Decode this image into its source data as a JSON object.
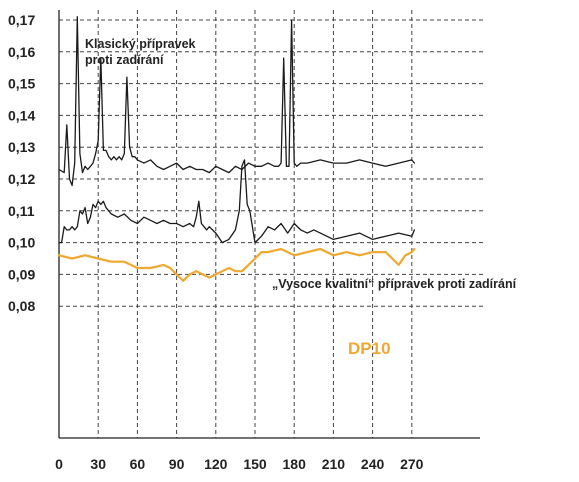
{
  "chart_data": {
    "type": "line",
    "title": "",
    "xlabel": "",
    "ylabel": "",
    "xlim": [
      0,
      275
    ],
    "ylim": [
      0.07,
      0.172
    ],
    "x_ticks": [
      "0",
      "30",
      "60",
      "90",
      "120",
      "150",
      "180",
      "210",
      "240",
      "270"
    ],
    "y_ticks": [
      "0,08",
      "0,09",
      "0,10",
      "0,11",
      "0,12",
      "0,13",
      "0,14",
      "0,15",
      "0,16",
      "0,17"
    ],
    "grid": true,
    "series": [
      {
        "name": "Klasický přípravek proti zadírání",
        "color": "#1a1a1a",
        "x": [
          0,
          4,
          6,
          8,
          10,
          12,
          14,
          16,
          18,
          20,
          22,
          24,
          26,
          28,
          30,
          32,
          34,
          36,
          38,
          40,
          42,
          44,
          46,
          48,
          50,
          52,
          54,
          56,
          58,
          60,
          65,
          70,
          75,
          80,
          85,
          90,
          95,
          100,
          105,
          110,
          115,
          120,
          125,
          130,
          135,
          140,
          145,
          150,
          155,
          160,
          165,
          168,
          170,
          172,
          174,
          176,
          178,
          180,
          182,
          185,
          190,
          200,
          210,
          220,
          230,
          240,
          250,
          260,
          270,
          272
        ],
        "y": [
          0.123,
          0.122,
          0.137,
          0.12,
          0.118,
          0.125,
          0.171,
          0.128,
          0.122,
          0.124,
          0.123,
          0.124,
          0.125,
          0.128,
          0.132,
          0.158,
          0.129,
          0.129,
          0.127,
          0.126,
          0.127,
          0.126,
          0.127,
          0.126,
          0.128,
          0.152,
          0.13,
          0.127,
          0.127,
          0.126,
          0.125,
          0.126,
          0.124,
          0.123,
          0.124,
          0.125,
          0.123,
          0.124,
          0.123,
          0.123,
          0.122,
          0.124,
          0.123,
          0.122,
          0.124,
          0.123,
          0.125,
          0.124,
          0.124,
          0.125,
          0.124,
          0.124,
          0.125,
          0.158,
          0.124,
          0.124,
          0.17,
          0.125,
          0.124,
          0.125,
          0.125,
          0.126,
          0.125,
          0.125,
          0.126,
          0.125,
          0.124,
          0.125,
          0.126,
          0.125
        ]
      },
      {
        "name": "„Vysoce kvalitní“ přípravek proti zadírání",
        "color": "#1a1a1a",
        "x": [
          0,
          2,
          4,
          6,
          8,
          10,
          12,
          14,
          16,
          18,
          20,
          22,
          24,
          26,
          28,
          30,
          32,
          34,
          36,
          38,
          40,
          45,
          50,
          55,
          60,
          65,
          70,
          75,
          80,
          85,
          90,
          95,
          100,
          103,
          105,
          107,
          109,
          111,
          113,
          115,
          120,
          125,
          130,
          135,
          138,
          140,
          142,
          144,
          146,
          148,
          150,
          155,
          160,
          165,
          170,
          175,
          180,
          185,
          190,
          195,
          200,
          210,
          220,
          230,
          240,
          250,
          260,
          270,
          272
        ],
        "y": [
          0.1,
          0.1,
          0.105,
          0.104,
          0.104,
          0.105,
          0.104,
          0.105,
          0.11,
          0.109,
          0.111,
          0.106,
          0.108,
          0.112,
          0.111,
          0.113,
          0.112,
          0.113,
          0.111,
          0.11,
          0.109,
          0.108,
          0.109,
          0.107,
          0.106,
          0.108,
          0.107,
          0.106,
          0.107,
          0.106,
          0.106,
          0.105,
          0.106,
          0.105,
          0.108,
          0.113,
          0.106,
          0.105,
          0.104,
          0.105,
          0.103,
          0.1,
          0.101,
          0.104,
          0.11,
          0.124,
          0.126,
          0.112,
          0.11,
          0.105,
          0.1,
          0.102,
          0.105,
          0.104,
          0.106,
          0.103,
          0.106,
          0.104,
          0.103,
          0.104,
          0.103,
          0.101,
          0.102,
          0.103,
          0.101,
          0.102,
          0.103,
          0.102,
          0.104
        ]
      },
      {
        "name": "DP10",
        "color": "#f0a830",
        "x": [
          0,
          10,
          20,
          30,
          40,
          50,
          60,
          70,
          80,
          85,
          90,
          95,
          100,
          105,
          110,
          115,
          120,
          125,
          130,
          135,
          140,
          145,
          150,
          155,
          160,
          170,
          180,
          190,
          200,
          210,
          220,
          230,
          240,
          250,
          260,
          265,
          270,
          272
        ],
        "y": [
          0.096,
          0.095,
          0.096,
          0.095,
          0.094,
          0.094,
          0.092,
          0.092,
          0.093,
          0.092,
          0.09,
          0.088,
          0.09,
          0.091,
          0.09,
          0.089,
          0.09,
          0.091,
          0.092,
          0.091,
          0.091,
          0.093,
          0.095,
          0.097,
          0.097,
          0.098,
          0.096,
          0.097,
          0.098,
          0.096,
          0.097,
          0.096,
          0.097,
          0.097,
          0.093,
          0.096,
          0.097,
          0.098
        ]
      }
    ],
    "annotations": {
      "classic_line1": "Klasický přípravek",
      "classic_line2": "proti zadírání",
      "premium": "„Vysoce kvalitní“ přípravek proti zadírání",
      "dp10": "DP10"
    }
  }
}
